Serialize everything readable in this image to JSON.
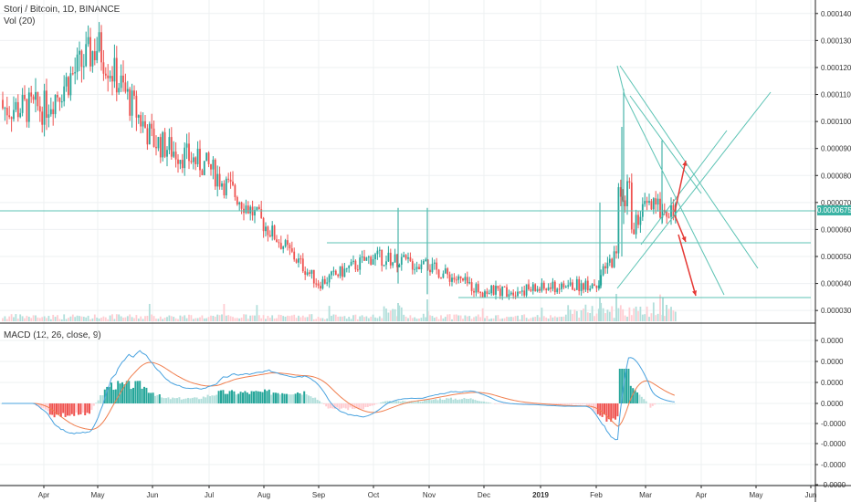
{
  "header": {
    "title": "Storj / Bitcoin, 1D, BINANCE",
    "volume_label": "Vol (20)"
  },
  "macd_label": "MACD (12, 26, close, 9)",
  "last_price_label": "0.00006750",
  "colors": {
    "up": "#26a69a",
    "down": "#ef5350",
    "up_light": "#b2dfdb",
    "down_light": "#ffcdd2",
    "drawing": "#5cc3b4",
    "macd_line": "#4aa3df",
    "signal_line": "#f07f4f",
    "arrow": "#e53935"
  },
  "chart_data": [
    {
      "type": "candlestick",
      "title": "Storj / Bitcoin, 1D, BINANCE",
      "x_ticks": [
        "Apr",
        "May",
        "Jun",
        "Jul",
        "Aug",
        "Sep",
        "Oct",
        "Nov",
        "Dec",
        "2019",
        "Feb",
        "Mar",
        "Apr",
        "May",
        "Jun"
      ],
      "y_ticks": [
        "0.00003000",
        "0.00004000",
        "0.00005000",
        "0.00006000",
        "0.00007000",
        "0.00008000",
        "0.00009000",
        "0.00010000",
        "0.00011000",
        "0.00012000",
        "0.00013000",
        "0.00014000"
      ],
      "ylim": [
        2.6e-05,
        0.000145
      ],
      "last_price": 6.75e-05,
      "path_by_month": [
        {
          "x": "Apr",
          "y": 0.000105
        },
        {
          "x": "May",
          "y": 0.000128
        },
        {
          "x": "Jun",
          "y": 9.3e-05
        },
        {
          "x": "Jul",
          "y": 8.3e-05
        },
        {
          "x": "Aug",
          "y": 6.2e-05
        },
        {
          "x": "Sep",
          "y": 4e-05
        },
        {
          "x": "Oct",
          "y": 5e-05
        },
        {
          "x": "Nov",
          "y": 4.6e-05
        },
        {
          "x": "Dec",
          "y": 3.7e-05
        },
        {
          "x": "2019",
          "y": 3.8e-05
        },
        {
          "x": "Feb",
          "y": 4e-05
        },
        {
          "x": "Mar",
          "y": 6.8e-05
        }
      ]
    },
    {
      "type": "macd",
      "title": "MACD (12, 26, close, 9)",
      "y_ticks": [
        "0.0000",
        "0.0000",
        "0.0000",
        "0.0000",
        "-0.0000",
        "-0.0000",
        "-0.0000",
        "-0.0000"
      ]
    }
  ]
}
